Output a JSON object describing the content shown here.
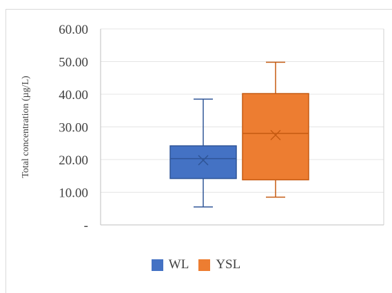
{
  "chart_data": {
    "type": "box",
    "ylabel": "Total concentration (µg/L)",
    "ylim": [
      0,
      60
    ],
    "yticks": [
      0,
      10,
      20,
      30,
      40,
      50,
      60
    ],
    "ytick_labels": [
      "-",
      "10.00",
      "20.00",
      "30.00",
      "40.00",
      "50.00",
      "60.00"
    ],
    "grid": true,
    "legend_position": "bottom",
    "series": [
      {
        "name": "WL",
        "color": "#4472c4",
        "min": 5.5,
        "q1": 14.2,
        "median": 20.3,
        "q3": 24.2,
        "max": 38.5,
        "mean": 19.8
      },
      {
        "name": "YSL",
        "color": "#ed7d31",
        "min": 8.5,
        "q1": 13.8,
        "median": 28.0,
        "q3": 40.2,
        "max": 49.8,
        "mean": 27.5
      }
    ]
  }
}
